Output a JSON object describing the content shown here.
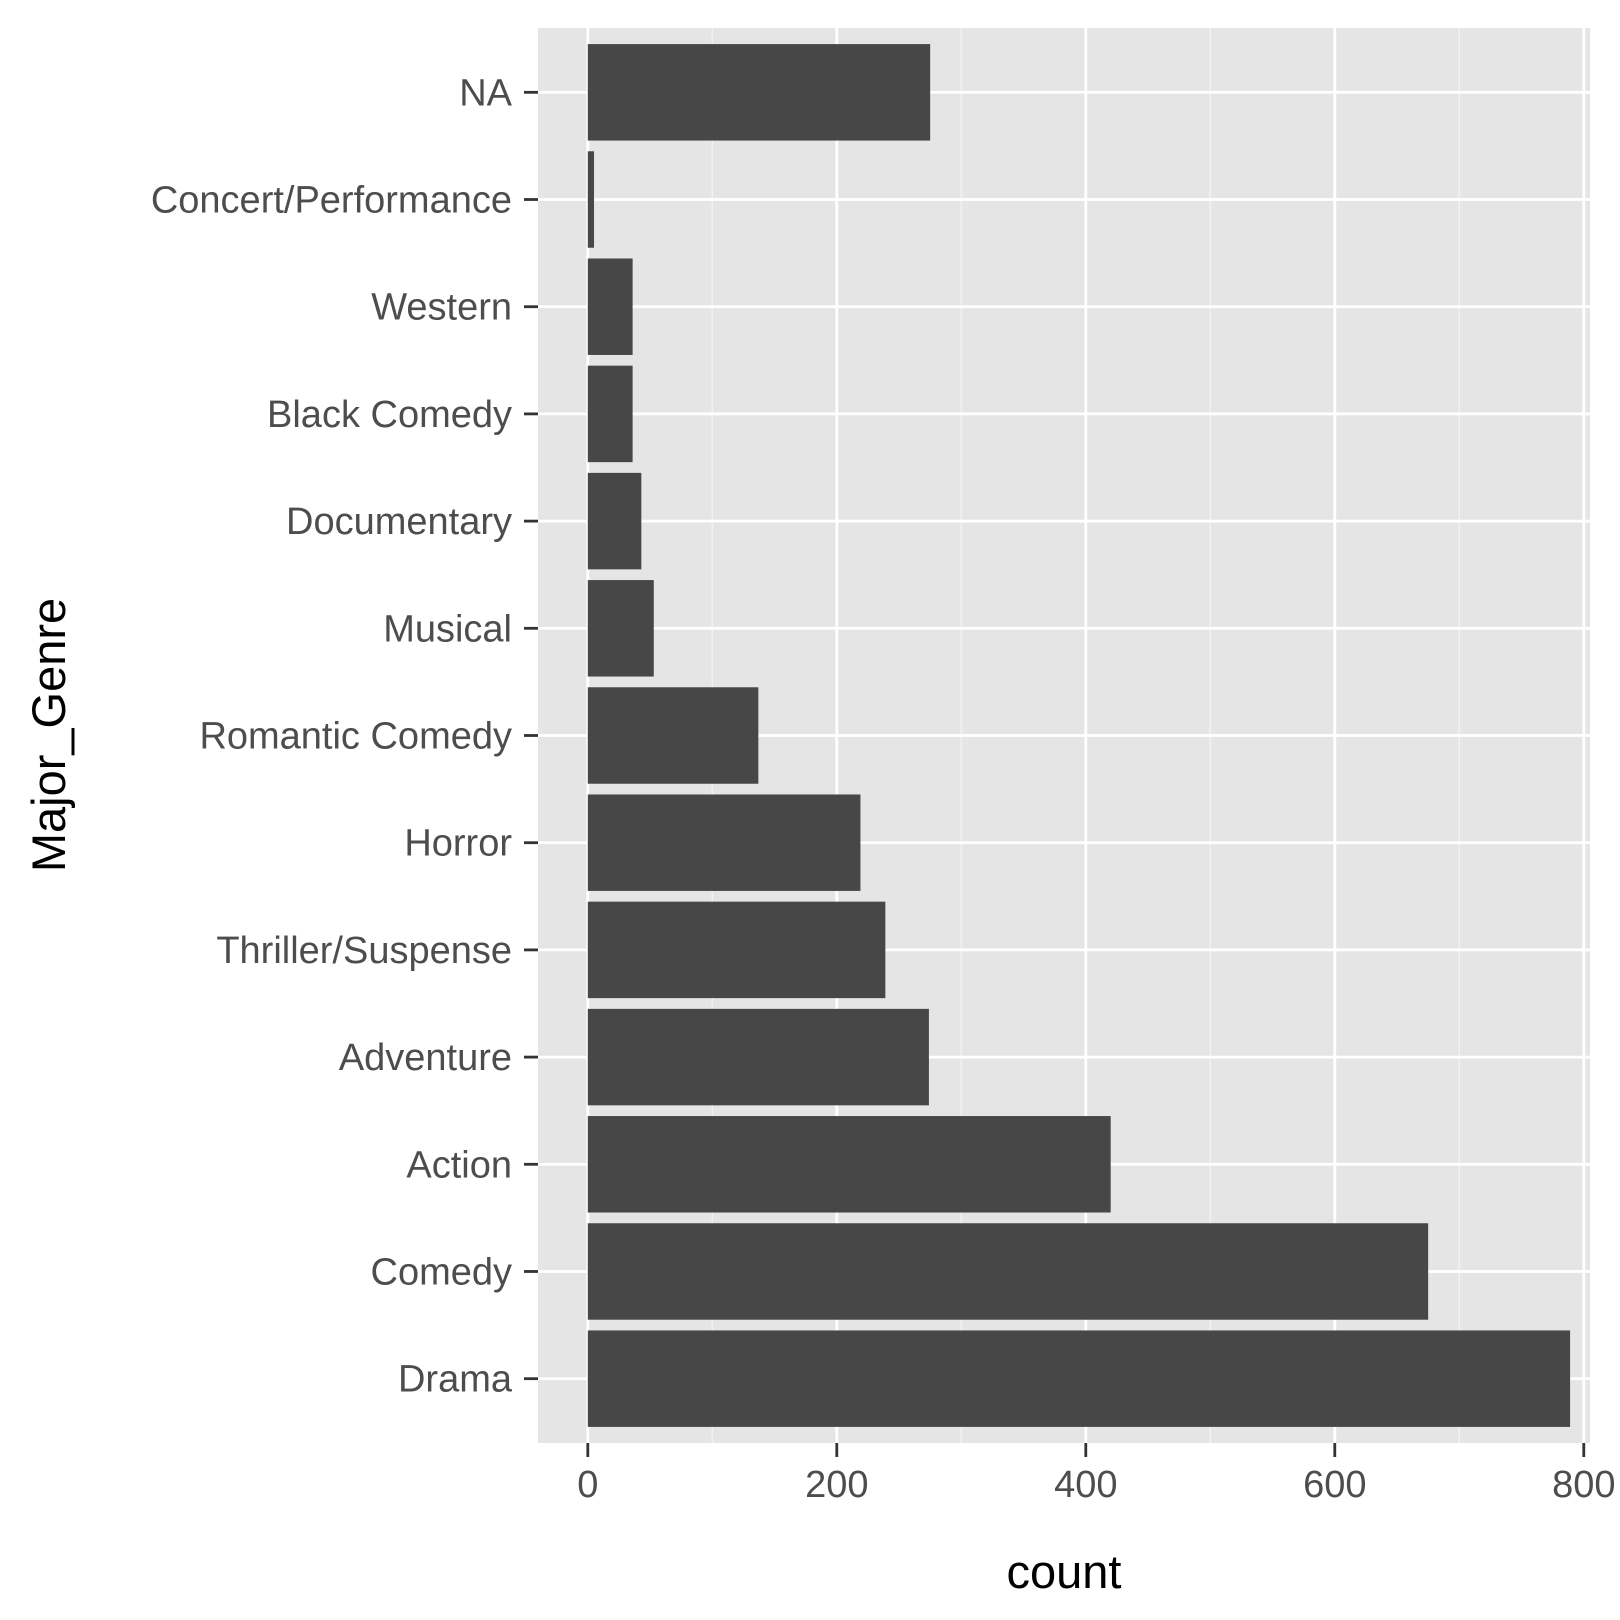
{
  "colors": {
    "panel_background": "#e5e5e5",
    "grid_major": "#ffffff",
    "grid_minor": "#f2f2f2",
    "bar_fill": "#474747",
    "tick_mark": "#333333",
    "tick_text": "#4d4d4d",
    "axis_title": "#000000"
  },
  "chart_data": {
    "type": "bar",
    "orientation": "horizontal",
    "title": "",
    "xlabel": "count",
    "ylabel": "Major_Genre",
    "categories": [
      "Drama",
      "Comedy",
      "Action",
      "Adventure",
      "Thriller/Suspense",
      "Horror",
      "Romantic Comedy",
      "Musical",
      "Documentary",
      "Black Comedy",
      "Western",
      "Concert/Performance",
      "NA"
    ],
    "values": [
      789,
      675,
      420,
      274,
      239,
      219,
      137,
      53,
      43,
      36,
      36,
      5,
      275
    ],
    "xlim": [
      -40,
      805
    ],
    "x_ticks": [
      0,
      200,
      400,
      600,
      800
    ],
    "x_minor_ticks": [
      100,
      300,
      500,
      700
    ],
    "grid": true,
    "legend": "none"
  }
}
